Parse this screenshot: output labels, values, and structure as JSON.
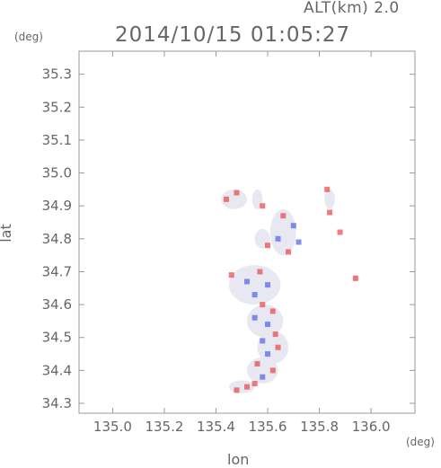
{
  "header": {
    "altitude_label": "ALT(km) 2.0",
    "timestamp": "2014/10/15 01:05:27"
  },
  "axes": {
    "x_unit": "(deg)",
    "y_unit": "(deg)",
    "x_label": "lon",
    "y_label": "lat",
    "x_range": [
      134.87,
      136.17
    ],
    "y_range": [
      34.27,
      35.37
    ],
    "x_ticks": [
      {
        "value": 135.0,
        "label": "135.0"
      },
      {
        "value": 135.2,
        "label": "135.2"
      },
      {
        "value": 135.4,
        "label": "135.4"
      },
      {
        "value": 135.6,
        "label": "135.6"
      },
      {
        "value": 135.8,
        "label": "135.8"
      },
      {
        "value": 136.0,
        "label": "136.0"
      }
    ],
    "y_ticks": [
      {
        "value": 34.3,
        "label": "34.3"
      },
      {
        "value": 34.4,
        "label": "34.4"
      },
      {
        "value": 34.5,
        "label": "34.5"
      },
      {
        "value": 34.6,
        "label": "34.6"
      },
      {
        "value": 34.7,
        "label": "34.7"
      },
      {
        "value": 34.8,
        "label": "34.8"
      },
      {
        "value": 34.9,
        "label": "34.9"
      },
      {
        "value": 35.0,
        "label": "35.0"
      },
      {
        "value": 35.1,
        "label": "35.1"
      },
      {
        "value": 35.2,
        "label": "35.2"
      },
      {
        "value": 35.3,
        "label": "35.3"
      }
    ]
  },
  "colors": {
    "positive": "#e85050",
    "negative": "#5a6ae8",
    "background_echo": "#e8e8f2",
    "frame": "#999999"
  },
  "echo_regions": [
    {
      "lon": 135.47,
      "lat": 34.92,
      "rlon": 0.05,
      "rlat": 0.03
    },
    {
      "lon": 135.56,
      "lat": 34.92,
      "rlon": 0.02,
      "rlat": 0.03
    },
    {
      "lon": 135.66,
      "lat": 34.82,
      "rlon": 0.05,
      "rlat": 0.07
    },
    {
      "lon": 135.58,
      "lat": 34.8,
      "rlon": 0.03,
      "rlat": 0.03
    },
    {
      "lon": 135.55,
      "lat": 34.66,
      "rlon": 0.1,
      "rlat": 0.06
    },
    {
      "lon": 135.59,
      "lat": 34.55,
      "rlon": 0.07,
      "rlat": 0.05
    },
    {
      "lon": 135.62,
      "lat": 34.47,
      "rlon": 0.06,
      "rlat": 0.05
    },
    {
      "lon": 135.58,
      "lat": 34.4,
      "rlon": 0.06,
      "rlat": 0.04
    },
    {
      "lon": 135.5,
      "lat": 34.35,
      "rlon": 0.05,
      "rlat": 0.02
    },
    {
      "lon": 135.84,
      "lat": 34.92,
      "rlon": 0.02,
      "rlat": 0.03
    },
    {
      "lon": 135.94,
      "lat": 34.68,
      "rlon": 0.01,
      "rlat": 0.01
    }
  ],
  "cells": [
    {
      "lon": 135.44,
      "lat": 34.92,
      "v": 1
    },
    {
      "lon": 135.48,
      "lat": 34.94,
      "v": 1
    },
    {
      "lon": 135.58,
      "lat": 34.9,
      "v": 1
    },
    {
      "lon": 135.66,
      "lat": 34.87,
      "v": 1
    },
    {
      "lon": 135.7,
      "lat": 34.84,
      "v": -1
    },
    {
      "lon": 135.64,
      "lat": 34.8,
      "v": -1
    },
    {
      "lon": 135.6,
      "lat": 34.78,
      "v": 1
    },
    {
      "lon": 135.68,
      "lat": 34.76,
      "v": 1
    },
    {
      "lon": 135.72,
      "lat": 34.79,
      "v": -1
    },
    {
      "lon": 135.83,
      "lat": 34.95,
      "v": 1
    },
    {
      "lon": 135.84,
      "lat": 34.88,
      "v": 1
    },
    {
      "lon": 135.88,
      "lat": 34.82,
      "v": 1
    },
    {
      "lon": 135.94,
      "lat": 34.68,
      "v": 1
    },
    {
      "lon": 135.46,
      "lat": 34.69,
      "v": 1
    },
    {
      "lon": 135.52,
      "lat": 34.67,
      "v": -1
    },
    {
      "lon": 135.57,
      "lat": 34.7,
      "v": 1
    },
    {
      "lon": 135.6,
      "lat": 34.66,
      "v": -1
    },
    {
      "lon": 135.55,
      "lat": 34.63,
      "v": -1
    },
    {
      "lon": 135.58,
      "lat": 34.6,
      "v": 1
    },
    {
      "lon": 135.62,
      "lat": 34.58,
      "v": 1
    },
    {
      "lon": 135.55,
      "lat": 34.56,
      "v": -1
    },
    {
      "lon": 135.6,
      "lat": 34.54,
      "v": -1
    },
    {
      "lon": 135.63,
      "lat": 34.51,
      "v": 1
    },
    {
      "lon": 135.58,
      "lat": 34.49,
      "v": -1
    },
    {
      "lon": 135.64,
      "lat": 34.47,
      "v": 1
    },
    {
      "lon": 135.6,
      "lat": 34.45,
      "v": -1
    },
    {
      "lon": 135.56,
      "lat": 34.42,
      "v": 1
    },
    {
      "lon": 135.62,
      "lat": 34.4,
      "v": 1
    },
    {
      "lon": 135.58,
      "lat": 34.38,
      "v": -1
    },
    {
      "lon": 135.52,
      "lat": 34.35,
      "v": 1
    },
    {
      "lon": 135.48,
      "lat": 34.34,
      "v": 1
    },
    {
      "lon": 135.55,
      "lat": 34.36,
      "v": 1
    }
  ]
}
